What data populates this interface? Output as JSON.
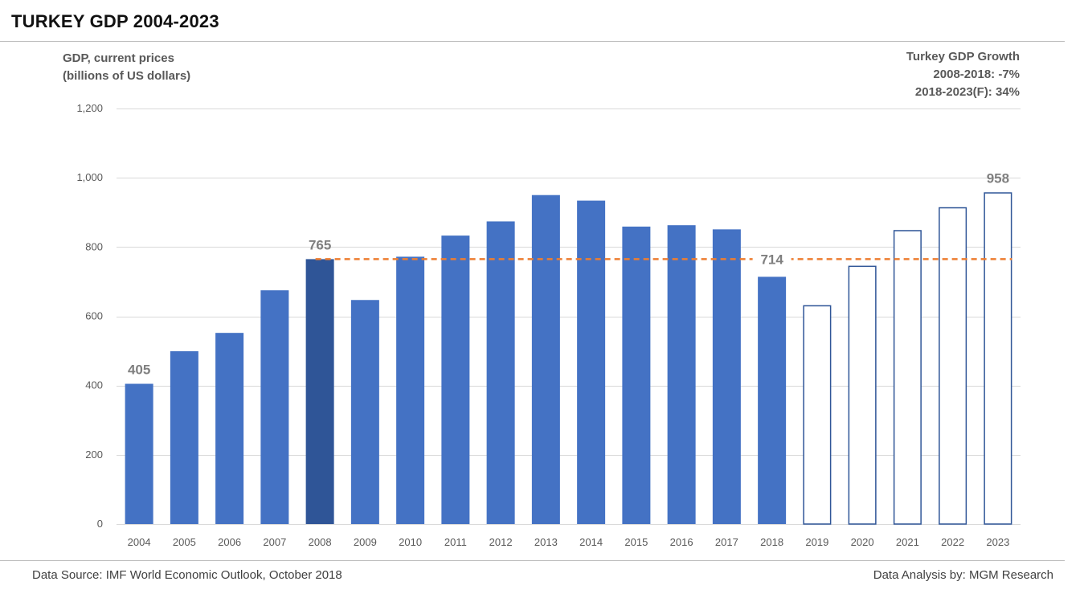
{
  "header": {
    "title": "TURKEY GDP 2004-2023"
  },
  "axis_label": {
    "line1": "GDP, current prices",
    "line2": "(billions of US dollars)"
  },
  "growth_box": {
    "heading": "Turkey GDP Growth",
    "line1": "2008-2018: -7%",
    "line2": "2018-2023(F): 34%"
  },
  "footer": {
    "source": "Data Source: IMF World Economic Outlook, October 2018",
    "analysis": "Data Analysis by: MGM Research"
  },
  "colors": {
    "bar": "#4472c4",
    "bar_highlight": "#2f5597",
    "forecast_outline": "#2f5597",
    "reference_line": "#ed7d31",
    "grid": "#d9d9d9"
  },
  "chart_data": {
    "type": "bar",
    "categories": [
      "2004",
      "2005",
      "2006",
      "2007",
      "2008",
      "2009",
      "2010",
      "2011",
      "2012",
      "2013",
      "2014",
      "2015",
      "2016",
      "2017",
      "2018",
      "2019",
      "2020",
      "2021",
      "2022",
      "2023"
    ],
    "values": [
      405,
      499,
      552,
      675,
      765,
      647,
      772,
      833,
      874,
      950,
      934,
      859,
      863,
      851,
      714,
      632,
      746,
      849,
      915,
      958
    ],
    "highlighted_category": "2008",
    "forecast_categories": [
      "2019",
      "2020",
      "2021",
      "2022",
      "2023"
    ],
    "data_labels": [
      {
        "category": "2004",
        "text": "405"
      },
      {
        "category": "2008",
        "text": "765"
      },
      {
        "category": "2023",
        "text": "958"
      }
    ],
    "reference_line": {
      "value": 765,
      "from_category": "2008",
      "to_category": "2023",
      "label": "714",
      "label_category": "2018"
    },
    "ylim": [
      0,
      1200
    ],
    "yticks": [
      0,
      200,
      400,
      600,
      800,
      1000,
      1200
    ],
    "ytick_labels": [
      "0",
      "200",
      "400",
      "600",
      "800",
      "1,000",
      "1,200"
    ],
    "grid": true,
    "legend": "none"
  }
}
